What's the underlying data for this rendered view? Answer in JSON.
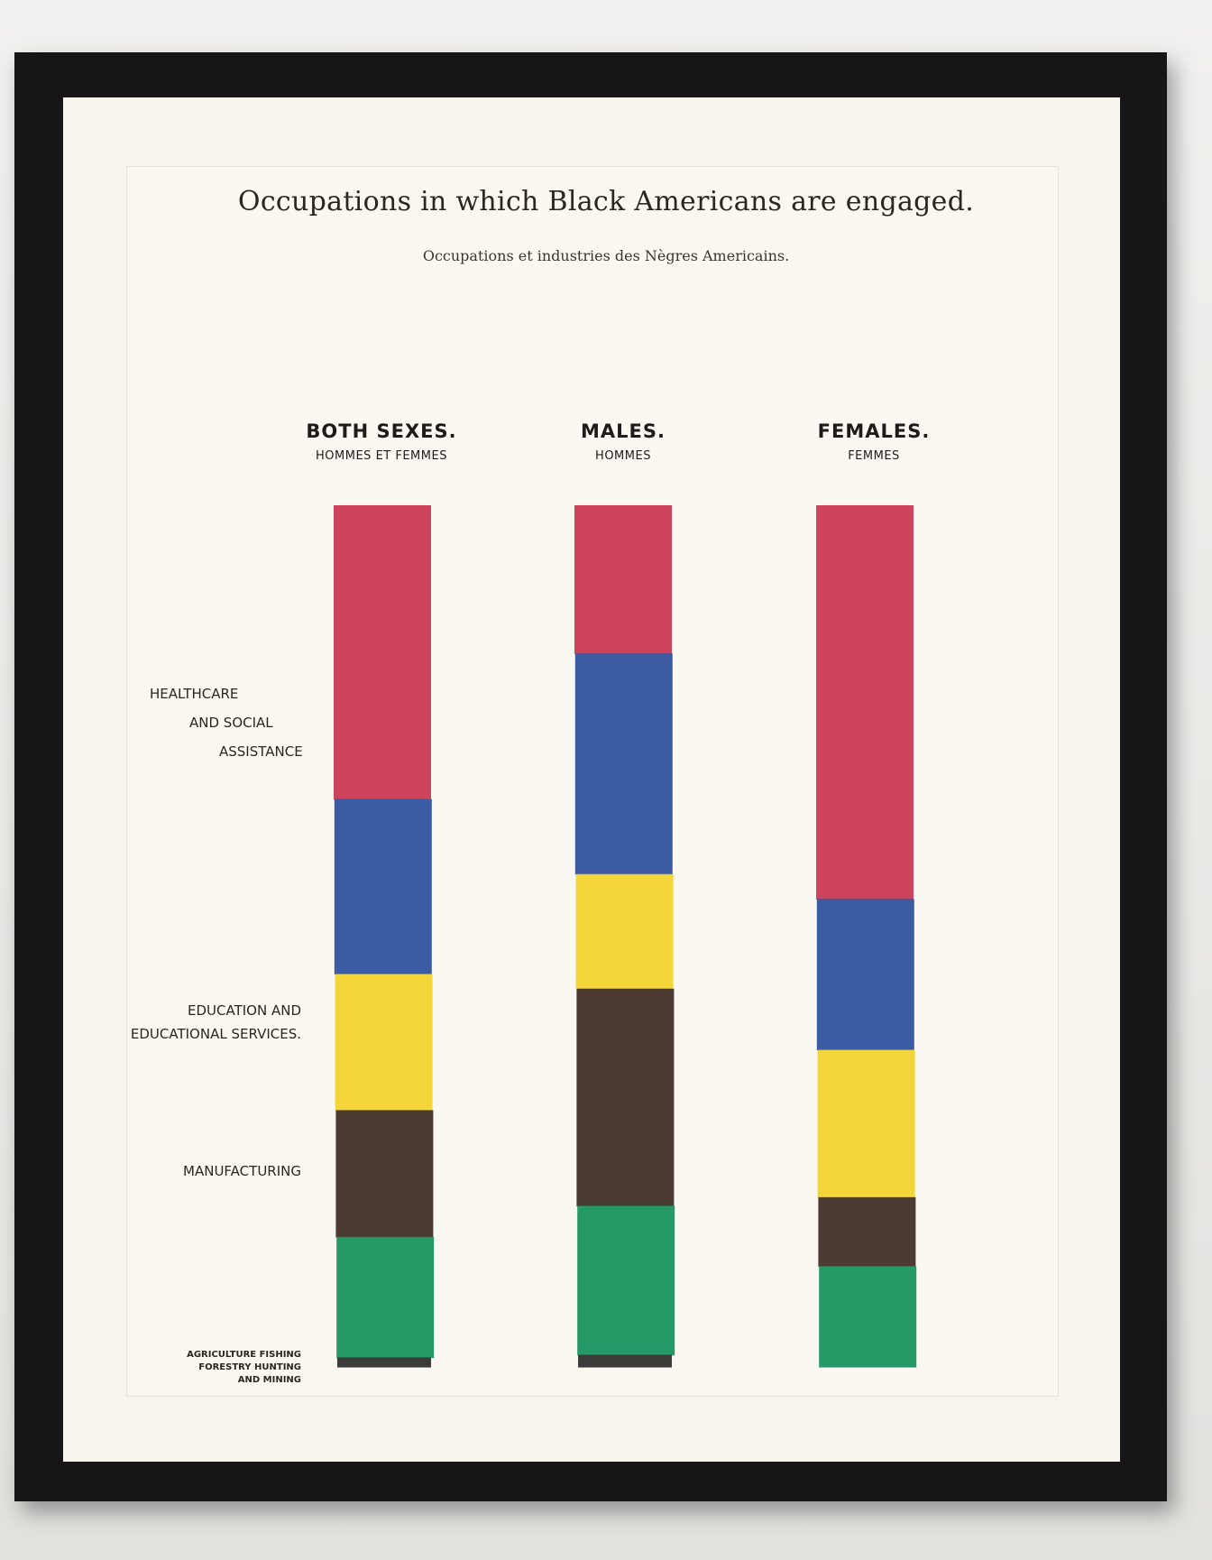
{
  "chart_data": {
    "type": "bar",
    "title": "Occupations in which Black Americans are engaged.",
    "subtitle": "Occupations et industries des Nègres Americains.",
    "columns": [
      {
        "label": "BOTH SEXES.",
        "sublabel": "HOMMES ET  FEMMES"
      },
      {
        "label": "MALES.",
        "sublabel": "HOMMES"
      },
      {
        "label": "FEMALES.",
        "sublabel": "FEMMES"
      }
    ],
    "category_labels": [
      "HEALTHCARE AND SOCIAL ASSISTANCE",
      "EDUCATION AND EDUCATIONAL SERVICES.",
      "MANUFACTURING",
      "AGRICULTURE FISHING FORESTRY HUNTING AND MINING"
    ],
    "label_lines": {
      "healthcare": [
        "HEALTHCARE",
        "AND SOCIAL",
        "ASSISTANCE"
      ],
      "education": [
        "EDUCATION  AND",
        "EDUCATIONAL SERVICES."
      ],
      "manufacturing": [
        "MANUFACTURING"
      ],
      "agriculture": [
        "AGRICULTURE FISHING",
        "FORESTRY HUNTING",
        "AND MINING"
      ]
    },
    "segment_colors": [
      "#c9344f",
      "#2a4d9c",
      "#f4d22a",
      "#3d2a22",
      "#14915a",
      "#2a2a2a"
    ],
    "series": [
      {
        "values": [
          34.1,
          20.3,
          15.8,
          14.7,
          14.0,
          1.1
        ]
      },
      {
        "values": [
          17.2,
          25.6,
          13.3,
          25.2,
          17.3,
          1.4
        ]
      },
      {
        "values": [
          45.7,
          17.5,
          17.1,
          8.0,
          11.7,
          0.0
        ]
      }
    ],
    "ylim": [
      0,
      100
    ],
    "grid": false,
    "legend": "none"
  }
}
